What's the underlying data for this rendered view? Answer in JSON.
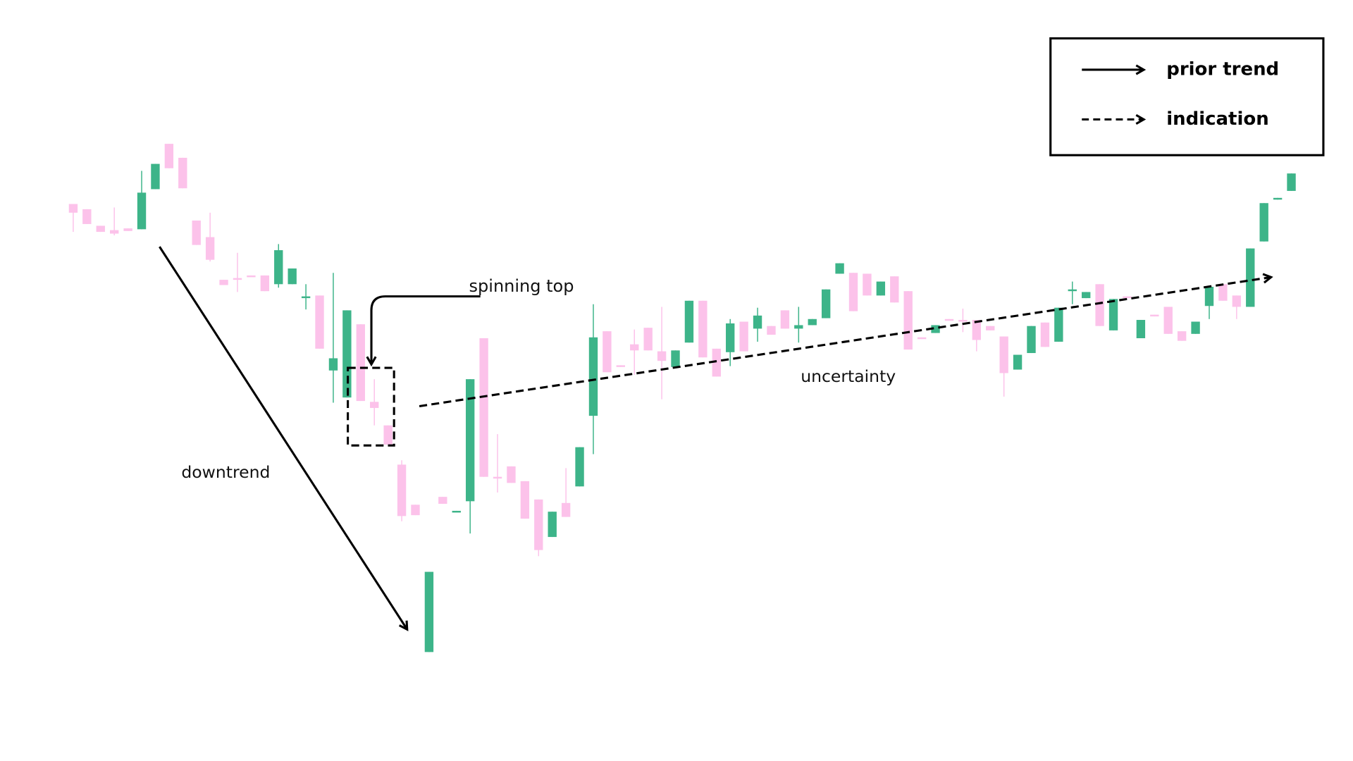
{
  "chart_data": {
    "type": "candlestick",
    "ylim": [
      1,
      874
    ],
    "up_color": "#3db489",
    "down_color": "#fcc2ea",
    "open": [
      640,
      634,
      615,
      610,
      612,
      611,
      657,
      709,
      693,
      621,
      602,
      553,
      555,
      558,
      558,
      548,
      548,
      533,
      535,
      449,
      418,
      502,
      413,
      386,
      341,
      295,
      126,
      304,
      287,
      299,
      486,
      327,
      339,
      322,
      301,
      258,
      297,
      316,
      397,
      494,
      455,
      479,
      498,
      471,
      453,
      481,
      529,
      474,
      470,
      505,
      497,
      500,
      518,
      497,
      501,
      509,
      560,
      561,
      560,
      535,
      557,
      540,
      487,
      492,
      508,
      507,
      507,
      500,
      488,
      450,
      469,
      504,
      482,
      541,
      532,
      548,
      495,
      534,
      486,
      513,
      522,
      494,
      491,
      523,
      548,
      535,
      522,
      597,
      645,
      655
    ],
    "high": [
      640,
      634,
      615,
      636,
      612,
      678,
      686,
      709,
      693,
      621,
      630,
      553,
      584,
      558,
      558,
      594,
      566,
      548,
      535,
      561,
      518,
      502,
      439,
      386,
      346,
      295,
      218,
      304,
      288,
      439,
      486,
      376,
      339,
      322,
      301,
      287,
      337,
      361,
      525,
      494,
      455,
      496,
      498,
      522,
      472,
      529,
      529,
      474,
      508,
      505,
      521,
      500,
      518,
      522,
      508,
      542,
      572,
      561,
      560,
      551,
      557,
      540,
      487,
      501,
      508,
      520,
      507,
      500,
      488,
      467,
      500,
      504,
      521,
      551,
      539,
      548,
      531,
      534,
      507,
      513,
      522,
      494,
      505,
      545,
      548,
      535,
      589,
      641,
      647,
      675
    ],
    "low": [
      608,
      617,
      608,
      604,
      609,
      611,
      657,
      681,
      658,
      593,
      574,
      547,
      539,
      557,
      540,
      544,
      548,
      519,
      474,
      412,
      418,
      414,
      386,
      364,
      276,
      283,
      126,
      296,
      287,
      262,
      327,
      309,
      320,
      279,
      236,
      258,
      281,
      316,
      353,
      447,
      453,
      444,
      472,
      416,
      453,
      481,
      464,
      442,
      454,
      471,
      482,
      490,
      497,
      481,
      501,
      509,
      560,
      517,
      535,
      535,
      527,
      473,
      485,
      492,
      507,
      493,
      471,
      495,
      419,
      450,
      469,
      476,
      482,
      525,
      532,
      500,
      495,
      532,
      486,
      511,
      491,
      483,
      491,
      508,
      529,
      508,
      522,
      597,
      645,
      655
    ],
    "close": [
      630,
      617,
      608,
      606,
      609,
      653,
      686,
      681,
      658,
      593,
      576,
      547,
      553,
      557,
      540,
      587,
      566,
      534,
      474,
      463,
      518,
      414,
      406,
      364,
      282,
      283,
      218,
      296,
      288,
      439,
      327,
      326,
      320,
      279,
      243,
      287,
      281,
      361,
      487,
      447,
      453,
      472,
      472,
      460,
      472,
      529,
      464,
      442,
      503,
      471,
      512,
      490,
      497,
      501,
      508,
      542,
      572,
      517,
      535,
      551,
      527,
      473,
      485,
      501,
      507,
      506,
      484,
      495,
      446,
      467,
      500,
      476,
      521,
      542,
      539,
      500,
      531,
      532,
      507,
      511,
      491,
      483,
      505,
      545,
      529,
      522,
      589,
      641,
      647,
      675
    ],
    "annotations": [
      "spinning top",
      "downtrend",
      "uncertainty"
    ],
    "legend": [
      {
        "label": "prior trend",
        "style": "solid"
      },
      {
        "label": "indication",
        "style": "dashed"
      }
    ]
  }
}
